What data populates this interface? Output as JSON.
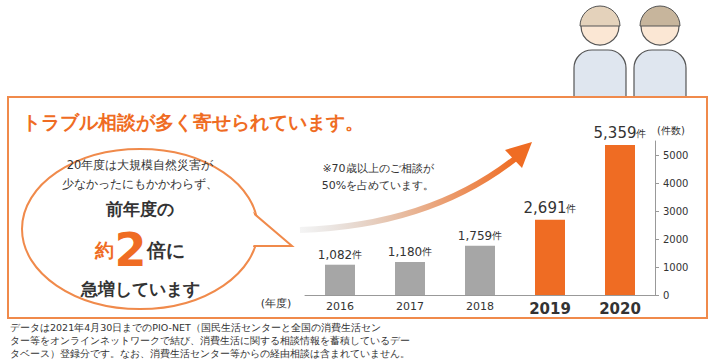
{
  "chart_data": {
    "type": "bar",
    "title": "トラブル相談が多く寄せられています。",
    "categories": [
      "2016",
      "2017",
      "2018",
      "2019",
      "2020"
    ],
    "values": [
      1082,
      1180,
      1759,
      2691,
      5359
    ],
    "value_labels": [
      "1,082件",
      "1,180件",
      "1,759件",
      "2,691件",
      "5,359件"
    ],
    "colors": [
      "#a6a6a6",
      "#a6a6a6",
      "#a6a6a6",
      "#ef6c23",
      "#ef6c23"
    ],
    "x_label": "(年度)",
    "y_label": "(件数)",
    "ylim": [
      0,
      5500
    ],
    "yticks": [
      0,
      1000,
      2000,
      3000,
      4000,
      5000
    ],
    "grid": false,
    "data_labels": true,
    "annotations": {
      "callout": [
        "20年度は大規模自然災害が",
        "少なかったにもかかわらず、",
        "前年度の",
        "約2倍に",
        "急増しています"
      ],
      "note": [
        "※70歳以上のご相談が",
        "50%を占めています。"
      ],
      "footnote": [
        "データは2021年4月30日までのPIO-NET（国民生活センターと全国の消費生活セン",
        "ター等をオンラインネットワークで結び、消費生活に関する相談情報を蓄積しているデー",
        "タベース）登録分です。なお、消費生活センター等からの経由相談は含まれていません。"
      ]
    }
  }
}
